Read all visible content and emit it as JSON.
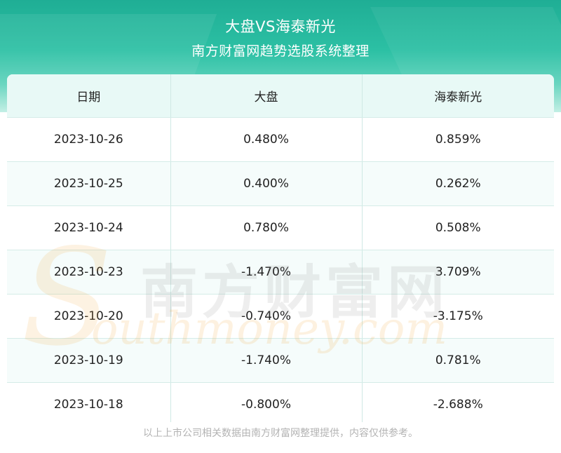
{
  "header": {
    "title": "大盘VS海泰新光",
    "subtitle": "南方财富网趋势选股系统整理"
  },
  "table": {
    "columns": [
      "日期",
      "大盘",
      "海泰新光"
    ],
    "rows": [
      [
        "2023-10-26",
        "0.480%",
        "0.859%"
      ],
      [
        "2023-10-25",
        "0.400%",
        "0.262%"
      ],
      [
        "2023-10-24",
        "0.780%",
        "0.508%"
      ],
      [
        "2023-10-23",
        "-1.470%",
        "3.709%"
      ],
      [
        "2023-10-20",
        "-0.740%",
        "-3.175%"
      ],
      [
        "2023-10-19",
        "-1.740%",
        "0.781%"
      ],
      [
        "2023-10-18",
        "-0.800%",
        "-2.688%"
      ]
    ]
  },
  "watermark": {
    "cn": "南方财富网",
    "en": "outhmoney.com",
    "s": "S"
  },
  "footer": {
    "note": "以上上市公司相关数据由南方财富网整理提供，内容仅供参考。"
  },
  "colors": {
    "header_green": "#2cc0a4",
    "table_header_bg": "#e8f9f6",
    "watermark_orange": "#f0aa3c"
  }
}
